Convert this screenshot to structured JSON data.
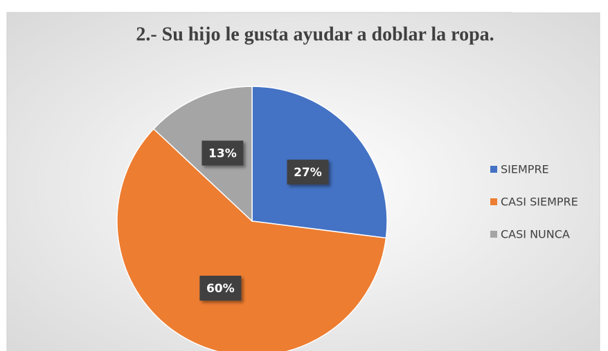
{
  "chart_data": {
    "type": "pie",
    "title": "2.- Su hijo le gusta ayudar a doblar la ropa.",
    "categories": [
      "SIEMPRE",
      "CASI SIEMPRE",
      "CASI NUNCA"
    ],
    "values": [
      27,
      60,
      13
    ],
    "value_labels": [
      "27%",
      "60%",
      "13%"
    ],
    "colors": [
      "#4472c4",
      "#ed7d31",
      "#a5a5a5"
    ],
    "legend": "right"
  }
}
